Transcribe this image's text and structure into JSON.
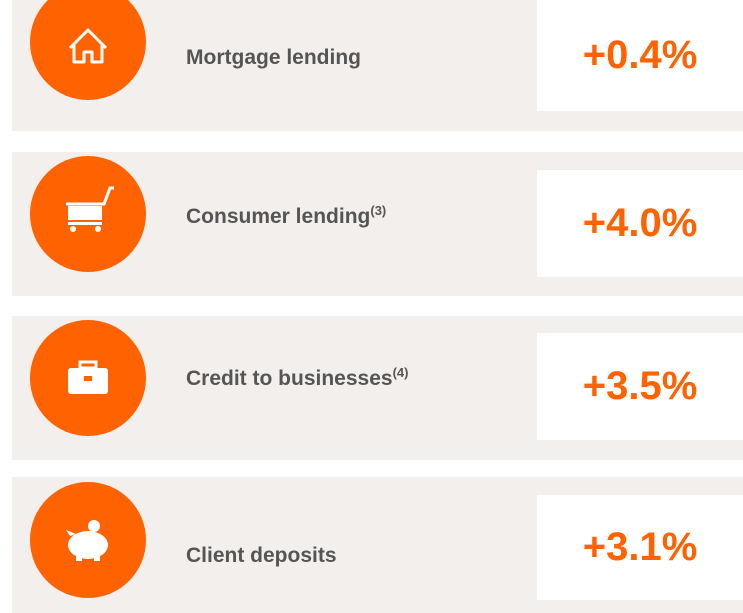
{
  "rows": [
    {
      "label": "Mortgage lending",
      "value": "+0.4%"
    },
    {
      "label": "Consumer lending",
      "note": "(3)",
      "value": "+4.0%"
    },
    {
      "label": "Credit to businesses",
      "note": "(4)",
      "value": "+3.5%"
    },
    {
      "label": "Client deposits",
      "value": "+3.1%"
    }
  ]
}
